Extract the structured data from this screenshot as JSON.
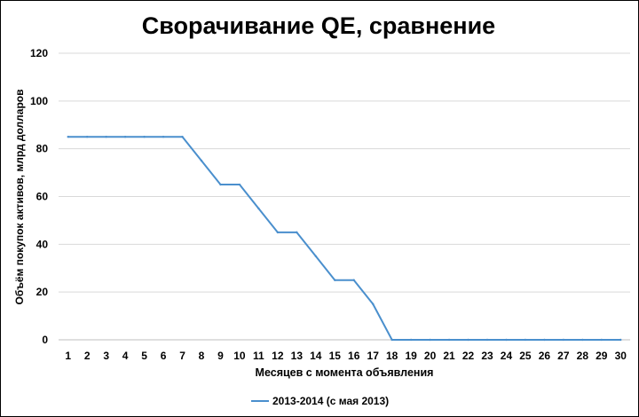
{
  "chart_data": {
    "type": "line",
    "title": "Сворачивание QE, сравнение",
    "xlabel": "Месяцев с момента объявления",
    "ylabel": "Объём покупок активов, млрд долларов",
    "ylim": [
      0,
      120
    ],
    "yticks": [
      0,
      20,
      40,
      60,
      80,
      100,
      120
    ],
    "x": [
      1,
      2,
      3,
      4,
      5,
      6,
      7,
      8,
      9,
      10,
      11,
      12,
      13,
      14,
      15,
      16,
      17,
      18,
      19,
      20,
      21,
      22,
      23,
      24,
      25,
      26,
      27,
      28,
      29,
      30
    ],
    "series": [
      {
        "name": "2013-2014 (с мая 2013)",
        "color": "#4a8fcd",
        "values": [
          85,
          85,
          85,
          85,
          85,
          85,
          85,
          75,
          65,
          65,
          55,
          45,
          45,
          35,
          25,
          25,
          15,
          0,
          0,
          0,
          0,
          0,
          0,
          0,
          0,
          0,
          0,
          0,
          0,
          0
        ]
      }
    ],
    "grid": {
      "horizontal": true,
      "color": "#d9d9d9"
    },
    "legend": {
      "position": "bottom"
    }
  }
}
